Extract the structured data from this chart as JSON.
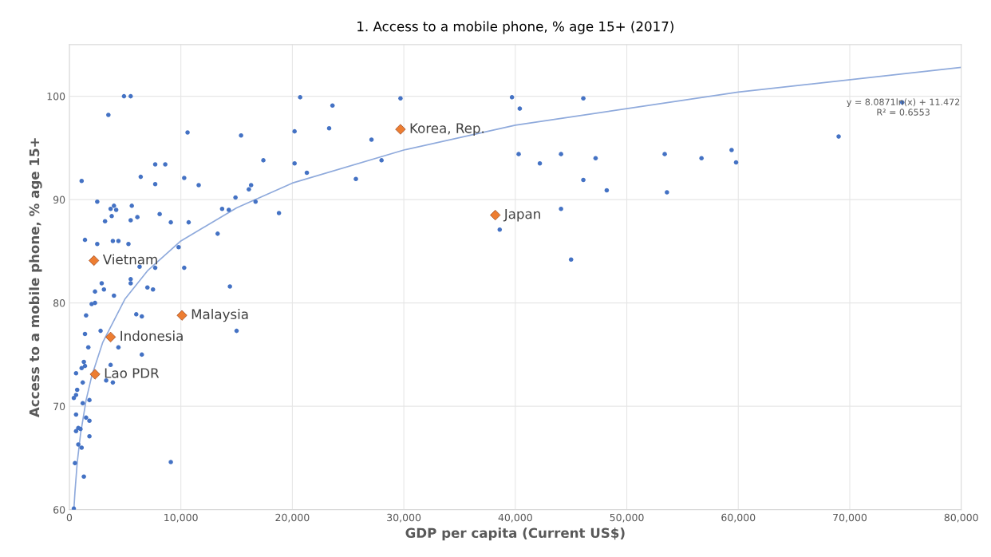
{
  "chart_data": {
    "type": "scatter",
    "title": "1. Access to a mobile phone, % age 15+ (2017)",
    "xlabel": "GDP per capita (Current US$)",
    "ylabel": "Access to a mobile phone, % age 15+",
    "xlim": [
      0,
      80000
    ],
    "xticks": [
      0,
      {
        "value": 10000,
        "label": "10,000"
      },
      {
        "value": 20000,
        "label": "20,000"
      },
      {
        "value": 30000,
        "label": "30,000"
      },
      {
        "value": 40000,
        "label": "40,000"
      },
      {
        "value": 50000,
        "label": "50,000"
      },
      {
        "value": 60000,
        "label": "60,000"
      },
      {
        "value": 70000,
        "label": "70,000"
      },
      {
        "value": 80000,
        "label": "80,000"
      }
    ],
    "ylim": [
      60,
      105
    ],
    "yticks": [
      60,
      70,
      80,
      90,
      100
    ],
    "grid": true,
    "series": [
      {
        "color": "#4472c4",
        "marker": "circle",
        "x": [
          4900,
          5500,
          3500,
          10600,
          15400,
          17400,
          7700,
          8600,
          6400,
          1100,
          10300,
          7700,
          11600,
          14900,
          16100,
          16300,
          16700,
          2500,
          4000,
          3700,
          4200,
          3800,
          5600,
          6100,
          3200,
          5500,
          8100,
          9100,
          10700,
          13700,
          14300,
          13300,
          1400,
          2500,
          3900,
          4400,
          5300,
          9800,
          6300,
          7700,
          10300,
          14400,
          5500,
          5500,
          2900,
          3100,
          2300,
          7000,
          7500,
          4000,
          2000,
          2300,
          1500,
          6000,
          6500,
          2800,
          1400,
          1700,
          4400,
          6500,
          15000,
          1300,
          1100,
          1400,
          3700,
          600,
          1200,
          3300,
          3900,
          700,
          600,
          400,
          1800,
          1200,
          600,
          1500,
          1800,
          800,
          1000,
          600,
          1800,
          800,
          1100,
          500,
          9100,
          1300,
          400,
          20700,
          23600,
          29700,
          39700,
          40400,
          46100,
          20200,
          23300,
          27100,
          20200,
          21300,
          28000,
          25700,
          18800,
          40300,
          42200,
          44100,
          46100,
          44100,
          38600,
          45000,
          47200,
          53400,
          56700,
          59400,
          59800,
          48200,
          53600,
          69000,
          74700
        ],
        "values": [
          100,
          100,
          98.2,
          96.5,
          96.2,
          93.8,
          93.4,
          93.4,
          92.2,
          91.8,
          92.1,
          91.5,
          91.4,
          90.2,
          91.0,
          91.4,
          89.8,
          89.8,
          89.4,
          89.1,
          89.0,
          88.4,
          89.4,
          88.3,
          87.9,
          88.0,
          88.6,
          87.8,
          87.8,
          89.1,
          89.0,
          86.7,
          86.1,
          85.7,
          86.0,
          86.0,
          85.7,
          85.4,
          83.5,
          83.4,
          83.4,
          81.6,
          82.3,
          81.9,
          81.9,
          81.3,
          81.1,
          81.5,
          81.3,
          80.7,
          79.9,
          80.0,
          78.8,
          78.9,
          78.7,
          77.3,
          77.0,
          75.7,
          75.7,
          75.0,
          77.3,
          74.3,
          73.7,
          73.9,
          74.0,
          73.2,
          72.3,
          72.5,
          72.3,
          71.6,
          71.1,
          70.8,
          70.6,
          70.3,
          69.2,
          68.9,
          68.6,
          67.9,
          67.8,
          67.6,
          67.1,
          66.3,
          66.0,
          64.5,
          64.6,
          63.2,
          60.1,
          99.9,
          99.1,
          99.8,
          99.9,
          98.8,
          99.8,
          96.6,
          96.9,
          95.8,
          93.5,
          92.6,
          93.8,
          92.0,
          88.7,
          94.4,
          93.5,
          94.4,
          91.9,
          89.1,
          87.1,
          84.2,
          94.0,
          94.4,
          94.0,
          94.8,
          93.6,
          90.9,
          90.7,
          96.1,
          99.4
        ]
      },
      {
        "color": "#ed7d31",
        "marker": "diamond",
        "x": [
          2200,
          10100,
          3700,
          2300,
          29700,
          38200
        ],
        "values": [
          84.1,
          78.8,
          76.7,
          73.1,
          96.8,
          88.5
        ]
      },
      {
        "type": "line",
        "color": "#8faadc",
        "marker": "none",
        "x": [
          410,
          500,
          700,
          1000,
          1500,
          2000,
          3000,
          5000,
          7000,
          10000,
          15000,
          20000,
          30000,
          40000,
          60000,
          80000
        ],
        "values": [
          60.1,
          61.7,
          64.5,
          67.3,
          70.6,
          72.9,
          76.2,
          80.4,
          83.1,
          86.0,
          89.2,
          91.6,
          94.8,
          97.2,
          100.4,
          102.8
        ]
      }
    ],
    "annotations": [
      {
        "text": "Vietnam",
        "x": 2200,
        "y": 84.1
      },
      {
        "text": "Malaysia",
        "x": 10100,
        "y": 78.8
      },
      {
        "text": "Indonesia",
        "x": 3700,
        "y": 76.7
      },
      {
        "text": "Lao PDR",
        "x": 2300,
        "y": 73.1
      },
      {
        "text": "Korea, Rep.",
        "x": 29700,
        "y": 96.8
      },
      {
        "text": "Japan",
        "x": 38200,
        "y": 88.5
      },
      "y = 8.0871ln(x) + 11.472",
      "R² = 0.6553"
    ]
  }
}
